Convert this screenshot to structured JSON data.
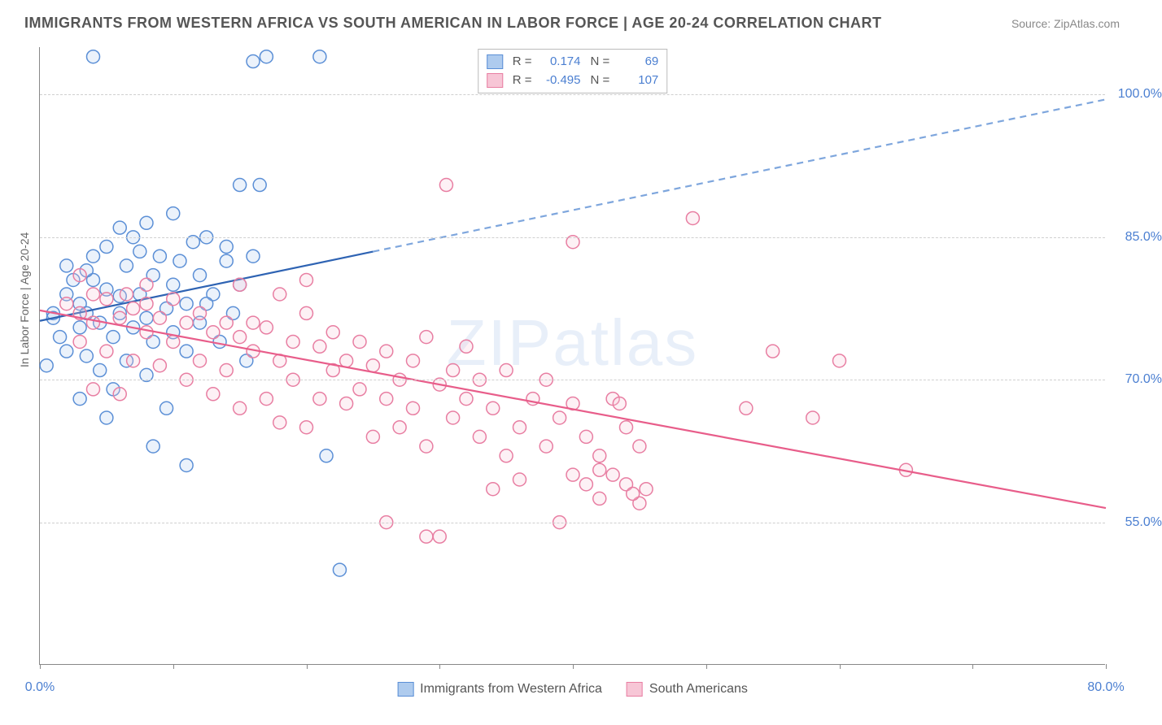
{
  "title": "IMMIGRANTS FROM WESTERN AFRICA VS SOUTH AMERICAN IN LABOR FORCE | AGE 20-24 CORRELATION CHART",
  "source": "Source: ZipAtlas.com",
  "watermark_a": "ZIP",
  "watermark_b": "atlas",
  "y_axis_label": "In Labor Force | Age 20-24",
  "chart": {
    "type": "scatter-correlation",
    "background_color": "#ffffff",
    "grid_color": "#cfcfcf",
    "axis_color": "#888888",
    "tick_label_color": "#4b7fd1",
    "xlim": [
      0,
      80
    ],
    "ylim": [
      40,
      105
    ],
    "x_ticks": [
      0,
      10,
      20,
      30,
      40,
      50,
      60,
      70,
      80
    ],
    "x_tick_labels": {
      "0": "0.0%",
      "80": "80.0%"
    },
    "y_ticks": [
      55,
      70,
      85,
      100
    ],
    "y_tick_labels": {
      "55": "55.0%",
      "70": "70.0%",
      "85": "85.0%",
      "100": "100.0%"
    },
    "marker_radius": 8,
    "marker_stroke_width": 1.5,
    "marker_fill_opacity": 0.25,
    "trend_line_width": 2.2,
    "series": [
      {
        "key": "western_africa",
        "label": "Immigrants from Western Africa",
        "color_stroke": "#5b8fd6",
        "color_fill": "#aecbee",
        "trend_solid_color": "#2e63b3",
        "trend_dash_color": "#7ea6dd",
        "R": "0.174",
        "N": "69",
        "trend": {
          "x1": 0,
          "y1": 76.2,
          "x2": 80,
          "y2": 99.5,
          "solid_until_x": 25
        },
        "points": [
          [
            1,
            77
          ],
          [
            1.5,
            74.5
          ],
          [
            2,
            79
          ],
          [
            2,
            73
          ],
          [
            2.5,
            80.5
          ],
          [
            3,
            75.5
          ],
          [
            3,
            78
          ],
          [
            3.5,
            77
          ],
          [
            3.5,
            72.5
          ],
          [
            4,
            80.5
          ],
          [
            4,
            83
          ],
          [
            4.5,
            76
          ],
          [
            4.5,
            71
          ],
          [
            5,
            79.5
          ],
          [
            5,
            84
          ],
          [
            5.5,
            74.5
          ],
          [
            5.5,
            69
          ],
          [
            6,
            78.8
          ],
          [
            6,
            77
          ],
          [
            6.5,
            82
          ],
          [
            6.5,
            72
          ],
          [
            7,
            85
          ],
          [
            7,
            75.5
          ],
          [
            7.5,
            79
          ],
          [
            7.5,
            83.5
          ],
          [
            8,
            76.5
          ],
          [
            8,
            70.5
          ],
          [
            8.5,
            81
          ],
          [
            8.5,
            74
          ],
          [
            9,
            83
          ],
          [
            9.5,
            77.5
          ],
          [
            9.5,
            67
          ],
          [
            10,
            80
          ],
          [
            10,
            75
          ],
          [
            10.5,
            82.5
          ],
          [
            11,
            78
          ],
          [
            11,
            73
          ],
          [
            11.5,
            84.5
          ],
          [
            12,
            81
          ],
          [
            12,
            76
          ],
          [
            12.5,
            85
          ],
          [
            13,
            79
          ],
          [
            13.5,
            74
          ],
          [
            14,
            82.5
          ],
          [
            14.5,
            77
          ],
          [
            15,
            80
          ],
          [
            15.5,
            72
          ],
          [
            16,
            83
          ],
          [
            4,
            104
          ],
          [
            16,
            103.5
          ],
          [
            17,
            104
          ],
          [
            21,
            104
          ],
          [
            15,
            90.5
          ],
          [
            16.5,
            90.5
          ],
          [
            14,
            84
          ],
          [
            8.5,
            63
          ],
          [
            11,
            61
          ],
          [
            3,
            68
          ],
          [
            0.5,
            71.5
          ],
          [
            1,
            76.5
          ],
          [
            2,
            82
          ],
          [
            3.5,
            81.5
          ],
          [
            6,
            86
          ],
          [
            21.5,
            62
          ],
          [
            22.5,
            50
          ],
          [
            5,
            66
          ],
          [
            10,
            87.5
          ],
          [
            8,
            86.5
          ],
          [
            12.5,
            78
          ]
        ]
      },
      {
        "key": "south_american",
        "label": "South Americans",
        "color_stroke": "#e87ea2",
        "color_fill": "#f7c6d6",
        "trend_solid_color": "#e85d8a",
        "trend_dash_color": "#f0a3bc",
        "R": "-0.495",
        "N": "107",
        "trend": {
          "x1": 0,
          "y1": 77.3,
          "x2": 80,
          "y2": 56.5,
          "solid_until_x": 80
        },
        "points": [
          [
            2,
            78
          ],
          [
            3,
            77
          ],
          [
            3,
            74
          ],
          [
            4,
            76
          ],
          [
            4,
            79
          ],
          [
            5,
            78.5
          ],
          [
            5,
            73
          ],
          [
            6,
            76.5
          ],
          [
            6.5,
            79
          ],
          [
            7,
            77.5
          ],
          [
            7,
            72
          ],
          [
            8,
            75
          ],
          [
            8,
            78
          ],
          [
            9,
            76.5
          ],
          [
            9,
            71.5
          ],
          [
            10,
            78.5
          ],
          [
            10,
            74
          ],
          [
            11,
            76
          ],
          [
            11,
            70
          ],
          [
            12,
            77
          ],
          [
            12,
            72
          ],
          [
            13,
            75
          ],
          [
            13,
            68.5
          ],
          [
            14,
            76
          ],
          [
            14,
            71
          ],
          [
            15,
            74.5
          ],
          [
            15,
            67
          ],
          [
            16,
            73
          ],
          [
            16,
            76
          ],
          [
            17,
            75.5
          ],
          [
            17,
            68
          ],
          [
            18,
            72
          ],
          [
            18,
            65.5
          ],
          [
            19,
            74
          ],
          [
            19,
            70
          ],
          [
            20,
            77
          ],
          [
            20,
            65
          ],
          [
            21,
            73.5
          ],
          [
            21,
            68
          ],
          [
            22,
            71
          ],
          [
            22,
            75
          ],
          [
            23,
            67.5
          ],
          [
            23,
            72
          ],
          [
            24,
            69
          ],
          [
            24,
            74
          ],
          [
            25,
            71.5
          ],
          [
            25,
            64
          ],
          [
            26,
            68
          ],
          [
            26,
            73
          ],
          [
            27,
            70
          ],
          [
            27,
            65
          ],
          [
            28,
            72
          ],
          [
            28,
            67
          ],
          [
            29,
            74.5
          ],
          [
            29,
            63
          ],
          [
            30,
            69.5
          ],
          [
            30.5,
            90.5
          ],
          [
            31,
            66
          ],
          [
            31,
            71
          ],
          [
            32,
            68
          ],
          [
            32,
            73.5
          ],
          [
            33,
            64
          ],
          [
            33,
            70
          ],
          [
            34,
            58.5
          ],
          [
            34,
            67
          ],
          [
            35,
            62
          ],
          [
            35,
            71
          ],
          [
            36,
            65
          ],
          [
            36,
            59.5
          ],
          [
            37,
            68
          ],
          [
            38,
            63
          ],
          [
            38,
            70
          ],
          [
            39,
            55
          ],
          [
            39,
            66
          ],
          [
            40,
            84.5
          ],
          [
            40,
            67.5
          ],
          [
            41,
            59
          ],
          [
            41,
            64
          ],
          [
            42,
            62
          ],
          [
            42,
            57.5
          ],
          [
            43,
            68
          ],
          [
            43,
            60
          ],
          [
            44,
            65
          ],
          [
            44,
            59
          ],
          [
            45,
            63
          ],
          [
            45,
            57
          ],
          [
            49,
            87
          ],
          [
            30,
            53.5
          ],
          [
            26,
            55
          ],
          [
            40,
            60
          ],
          [
            42,
            60.5
          ],
          [
            43.5,
            67.5
          ],
          [
            44.5,
            58
          ],
          [
            45.5,
            58.5
          ],
          [
            55,
            73
          ],
          [
            53,
            67
          ],
          [
            58,
            66
          ],
          [
            65,
            60.5
          ],
          [
            60,
            72
          ],
          [
            29,
            53.5
          ],
          [
            15,
            80
          ],
          [
            8,
            80
          ],
          [
            4,
            69
          ],
          [
            3,
            81
          ],
          [
            6,
            68.5
          ],
          [
            18,
            79
          ],
          [
            20,
            80.5
          ]
        ]
      }
    ]
  },
  "legend_top": {
    "r_label": "R =",
    "n_label": "N ="
  }
}
